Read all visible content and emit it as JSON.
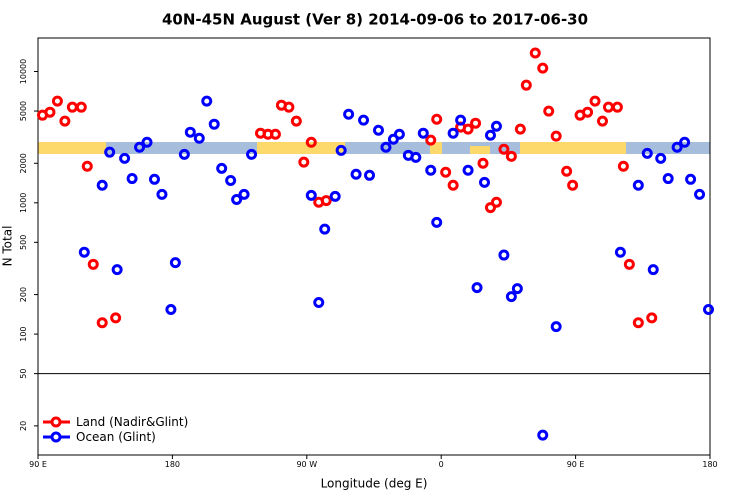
{
  "chart_data": {
    "type": "scatter",
    "title": "40N-45N August (Ver 8)   2014-09-06 to 2017-06-30",
    "x_label": "Longitude (deg E)",
    "y_label": "N Total",
    "log_y": true,
    "hline": 50,
    "legend": "bottom-left",
    "xlim": [
      90,
      540
    ],
    "xticks": [
      {
        "value": 90,
        "label": "90 E"
      },
      180,
      {
        "value": 270,
        "label": "90 W"
      },
      {
        "value": 360,
        "label": "0"
      },
      {
        "value": 450,
        "label": "90 E"
      },
      {
        "value": 540,
        "label": "180"
      }
    ],
    "ylim": [
      12,
      18000
    ],
    "yticks": [
      20,
      50,
      100,
      200,
      500,
      1000,
      2000,
      5000,
      10000
    ],
    "series": [
      {
        "name": "Land (Nadir&Glint)",
        "color": "#ff0000",
        "x": [
          93,
          98,
          103,
          108,
          113,
          119,
          123,
          127,
          133,
          142,
          239,
          244,
          249,
          253,
          258,
          263,
          268,
          273,
          278,
          283,
          353,
          357,
          363,
          368,
          373,
          378,
          383,
          388,
          393,
          397,
          402,
          407,
          413,
          417,
          423,
          428,
          432,
          437,
          444,
          448,
          453,
          458,
          463,
          468,
          472,
          478,
          482,
          486,
          492,
          501
        ],
        "values": [
          4650,
          4900,
          5950,
          4190,
          5350,
          5350,
          1900,
          340,
          122,
          133,
          3390,
          3330,
          3330,
          5540,
          5350,
          4190,
          2040,
          2890,
          1010,
          1040,
          3000,
          4330,
          1710,
          1360,
          3770,
          3640,
          4040,
          2000,
          920,
          1010,
          2560,
          2260,
          3640,
          7870,
          13830,
          10620,
          4990,
          3220,
          1740,
          1360,
          4650,
          4900,
          5950,
          4190,
          5350,
          5350,
          1900,
          340,
          122,
          133
        ]
      },
      {
        "name": "Ocean (Glint)",
        "color": "#0000ff",
        "x": [
          121,
          133,
          138,
          143,
          148,
          153,
          158,
          163,
          168,
          173,
          179,
          182,
          188,
          192,
          198,
          203,
          208,
          213,
          219,
          223,
          228,
          233,
          273,
          278,
          282,
          289,
          293,
          298,
          303,
          308,
          312,
          318,
          323,
          328,
          332,
          338,
          343,
          348,
          353,
          357,
          368,
          373,
          378,
          384,
          389,
          393,
          397,
          402,
          407,
          411,
          428,
          437,
          480,
          492,
          498,
          502,
          507,
          512,
          518,
          523,
          527,
          533,
          539
        ],
        "values": [
          420,
          1360,
          2430,
          310,
          2180,
          1530,
          2650,
          2890,
          1510,
          1160,
          154,
          350,
          2340,
          3450,
          3100,
          5950,
          3970,
          1830,
          1480,
          1060,
          1160,
          2340,
          1140,
          174,
          630,
          1120,
          2510,
          4730,
          1650,
          4260,
          1620,
          3570,
          2650,
          3050,
          3330,
          2300,
          2220,
          3390,
          1770,
          710,
          3390,
          4260,
          1770,
          226,
          1430,
          3270,
          3830,
          400,
          193,
          222,
          17,
          114,
          420,
          1360,
          2380,
          310,
          2180,
          1530,
          2650,
          2890,
          1510,
          1160,
          154
        ]
      }
    ]
  }
}
